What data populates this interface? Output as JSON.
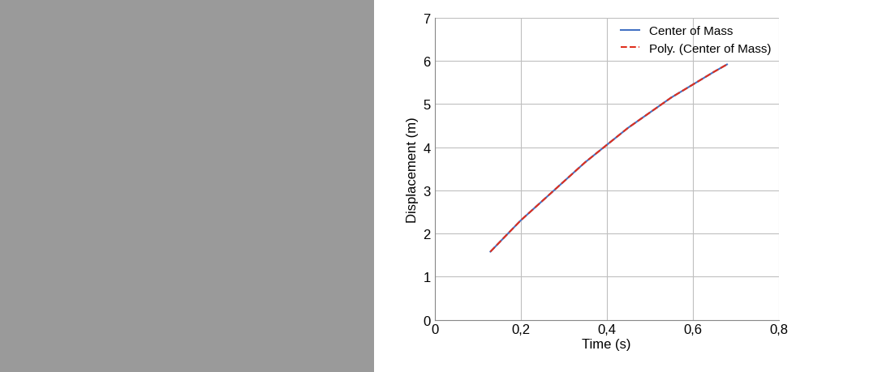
{
  "chart_data": {
    "type": "line",
    "x_label": "Time (s)",
    "y_label": "Displacement (m)",
    "x": [
      0.13,
      0.2,
      0.25,
      0.3,
      0.35,
      0.4,
      0.45,
      0.5,
      0.55,
      0.6,
      0.65,
      0.68
    ],
    "series": [
      {
        "name": "Center of Mass",
        "color": "#4472c4",
        "line_style": "solid",
        "values": [
          1.58,
          2.3,
          2.75,
          3.2,
          3.65,
          4.05,
          4.45,
          4.8,
          5.15,
          5.45,
          5.75,
          5.92
        ]
      },
      {
        "name": "Poly. (Center of Mass)",
        "color": "#e0301e",
        "line_style": "dashed",
        "values": [
          1.58,
          2.3,
          2.75,
          3.2,
          3.65,
          4.05,
          4.45,
          4.8,
          5.15,
          5.45,
          5.75,
          5.92
        ]
      }
    ],
    "xlim": [
      0,
      0.8
    ],
    "xticks": [
      0,
      {
        "value": 0.2,
        "label": "0,2"
      },
      {
        "value": 0.4,
        "label": "0,4"
      },
      {
        "value": 0.6,
        "label": "0,6"
      },
      {
        "value": 0.8,
        "label": "0,8"
      }
    ],
    "ylim": [
      0,
      7
    ],
    "yticks": [
      0,
      1,
      2,
      3,
      4,
      5,
      6,
      7
    ],
    "grid": true,
    "legend": "upper right"
  }
}
